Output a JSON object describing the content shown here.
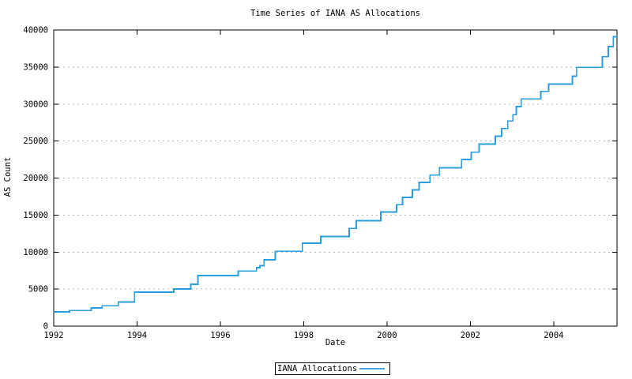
{
  "title": "Time Series of IANA AS Allocations",
  "legend": {
    "label": "IANA Allocations"
  },
  "colors": {
    "line": "#2a9fe0",
    "grid": "#b4b4b4",
    "axis": "#000000",
    "text": "#000000",
    "background": "#ffffff"
  },
  "chart_data": {
    "type": "line",
    "line_style": "step-post",
    "title": "Time Series of IANA AS Allocations",
    "xlabel": "Date",
    "ylabel": "AS Count",
    "xlim": [
      1992,
      2005.52
    ],
    "ylim": [
      0,
      40000
    ],
    "x_ticks": [
      1992,
      1994,
      1996,
      1998,
      2000,
      2002,
      2004
    ],
    "y_ticks": [
      0,
      5000,
      10000,
      15000,
      20000,
      25000,
      30000,
      35000,
      40000
    ],
    "grid": "horizontal dotted lines at each y tick except 0 and 40000",
    "legend_position": "bottom-center-outside",
    "series": [
      {
        "name": "IANA Allocations",
        "color": "#2a9fe0",
        "points": [
          [
            1992.0,
            1920
          ],
          [
            1992.38,
            2100
          ],
          [
            1992.9,
            2450
          ],
          [
            1993.16,
            2750
          ],
          [
            1993.55,
            3250
          ],
          [
            1993.94,
            4600
          ],
          [
            1994.88,
            5000
          ],
          [
            1995.29,
            5650
          ],
          [
            1995.46,
            6830
          ],
          [
            1996.43,
            7450
          ],
          [
            1996.87,
            7900
          ],
          [
            1996.95,
            8150
          ],
          [
            1997.05,
            8950
          ],
          [
            1997.32,
            10100
          ],
          [
            1997.97,
            11200
          ],
          [
            1998.41,
            12100
          ],
          [
            1999.09,
            13200
          ],
          [
            1999.26,
            14250
          ],
          [
            1999.85,
            15400
          ],
          [
            2000.23,
            16400
          ],
          [
            2000.37,
            17400
          ],
          [
            2000.61,
            18400
          ],
          [
            2000.77,
            19400
          ],
          [
            2001.03,
            20400
          ],
          [
            2001.26,
            21400
          ],
          [
            2001.79,
            22500
          ],
          [
            2002.02,
            23500
          ],
          [
            2002.21,
            24600
          ],
          [
            2002.6,
            25650
          ],
          [
            2002.75,
            26700
          ],
          [
            2002.9,
            27700
          ],
          [
            2003.02,
            28550
          ],
          [
            2003.1,
            29650
          ],
          [
            2003.22,
            30700
          ],
          [
            2003.69,
            31700
          ],
          [
            2003.88,
            32700
          ],
          [
            2004.45,
            33750
          ],
          [
            2004.55,
            34950
          ],
          [
            2005.17,
            36400
          ],
          [
            2005.31,
            37750
          ],
          [
            2005.43,
            39100
          ]
        ]
      }
    ]
  }
}
